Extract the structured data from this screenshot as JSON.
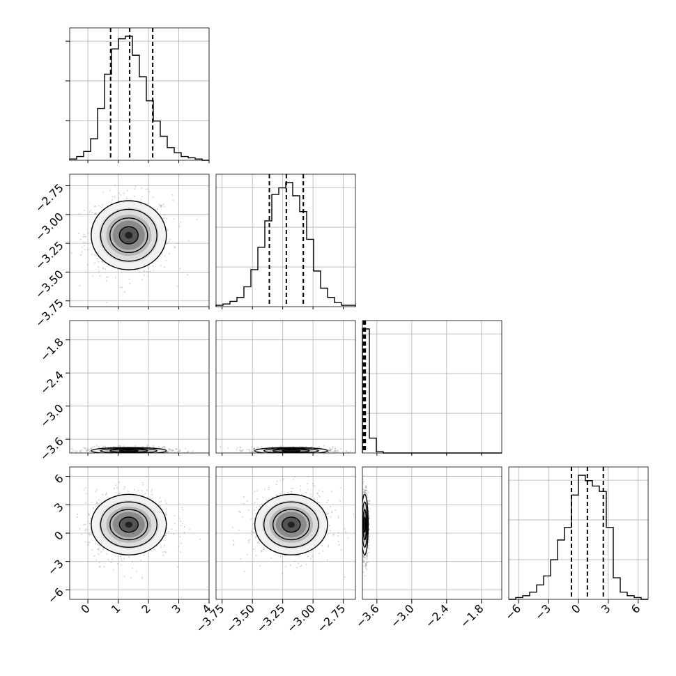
{
  "chart_data": {
    "type": "corner",
    "title": "",
    "n_params": 4,
    "grid": true,
    "quantiles": [
      0.16,
      0.5,
      0.84
    ],
    "params": [
      {
        "range": [
          -0.6,
          4.0
        ],
        "ticks": [
          0,
          1,
          2,
          3,
          4
        ],
        "tick_labels": [
          "0",
          "1",
          "2",
          "3",
          "4"
        ],
        "quantiles": [
          0.75,
          1.38,
          2.14
        ]
      },
      {
        "range": [
          -3.8,
          -2.65
        ],
        "ticks": [
          -3.75,
          -3.5,
          -3.25,
          -3.0,
          -2.75
        ],
        "tick_labels": [
          "−3.75",
          "−3.50",
          "−3.25",
          "−3.00",
          "−2.75"
        ],
        "quantiles": [
          -3.36,
          -3.22,
          -3.08
        ]
      },
      {
        "range": [
          -3.85,
          -1.45
        ],
        "ticks": [
          -3.6,
          -3.0,
          -2.4,
          -1.8
        ],
        "tick_labels": [
          "−3.6",
          "−3.0",
          "−2.4",
          "−1.8"
        ],
        "quantiles": [
          -3.83,
          -3.815,
          -3.8
        ]
      },
      {
        "range": [
          -7.0,
          7.0
        ],
        "ticks": [
          -6,
          -3,
          0,
          3,
          6
        ],
        "tick_labels": [
          "−6",
          "−3",
          "0",
          "3",
          "6"
        ],
        "quantiles": [
          -0.7,
          0.9,
          2.5
        ]
      }
    ],
    "histograms": [
      {
        "bin_edges": [
          -0.6,
          -0.37,
          -0.14,
          0.09,
          0.32,
          0.55,
          0.78,
          1.01,
          1.24,
          1.47,
          1.7,
          1.93,
          2.16,
          2.39,
          2.62,
          2.85,
          3.08,
          3.31,
          3.54,
          3.77,
          4.0
        ],
        "counts": [
          1,
          3,
          7,
          17,
          41,
          68,
          88,
          96,
          98,
          83,
          66,
          47,
          31,
          19,
          10,
          6,
          3,
          2,
          1,
          0
        ]
      },
      {
        "bin_edges": [
          -3.8,
          -3.7425,
          -3.685,
          -3.6275,
          -3.57,
          -3.5125,
          -3.455,
          -3.3975,
          -3.34,
          -3.2825,
          -3.225,
          -3.1675,
          -3.11,
          -3.0525,
          -2.995,
          -2.9375,
          -2.88,
          -2.8225,
          -2.765,
          -2.7075,
          -2.65
        ],
        "counts": [
          1,
          2,
          4,
          7,
          15,
          28,
          45,
          65,
          85,
          90,
          94,
          84,
          72,
          51,
          27,
          14,
          7,
          3,
          1,
          1
        ]
      },
      {
        "bin_edges": [
          -3.85,
          -3.73,
          -3.61,
          -3.49,
          -3.37,
          -3.25,
          -3.13,
          -3.01,
          -2.89,
          -2.77,
          -2.65,
          -2.53,
          -2.41,
          -2.29,
          -2.17,
          -2.05,
          -1.93,
          -1.81,
          -1.69,
          -1.57,
          -1.45
        ],
        "counts": [
          100,
          12,
          1,
          0,
          0,
          0,
          0,
          0,
          0,
          0,
          0,
          0,
          0,
          0,
          0,
          0,
          0,
          0,
          0,
          0
        ]
      },
      {
        "bin_edges": [
          -7.0,
          -6.3,
          -5.6,
          -4.9,
          -4.2,
          -3.5,
          -2.8,
          -2.1,
          -1.4,
          -0.7,
          0.0,
          0.7,
          1.4,
          2.1,
          2.8,
          3.5,
          4.2,
          4.9,
          5.6,
          6.3,
          7.0
        ],
        "counts": [
          0,
          1,
          2,
          4,
          8,
          13,
          22,
          33,
          40,
          58,
          69,
          66,
          63,
          60,
          40,
          12,
          4,
          2,
          1,
          0
        ]
      }
    ],
    "pair_stats": {
      "1_0": {
        "mean": [
          1.35,
          -3.18
        ],
        "sd": [
          0.62,
          0.15
        ],
        "rho": 0.0
      },
      "2_0": {
        "mean": [
          1.35,
          -3.81
        ],
        "sd": [
          0.62,
          0.03
        ],
        "rho": 0.0
      },
      "2_1": {
        "mean": [
          -3.18,
          -3.81
        ],
        "sd": [
          0.15,
          0.03
        ],
        "rho": 0.0
      },
      "3_0": {
        "mean": [
          1.35,
          0.9
        ],
        "sd": [
          0.62,
          1.6
        ],
        "rho": 0.05
      },
      "3_1": {
        "mean": [
          -3.18,
          0.9
        ],
        "sd": [
          0.15,
          1.6
        ],
        "rho": 0.0
      },
      "3_2": {
        "mean": [
          -3.81,
          0.9
        ],
        "sd": [
          0.03,
          1.6
        ],
        "rho": 0.0
      }
    },
    "contour_levels_sigma": [
      0.5,
      1.0,
      1.5,
      2.0
    ]
  }
}
